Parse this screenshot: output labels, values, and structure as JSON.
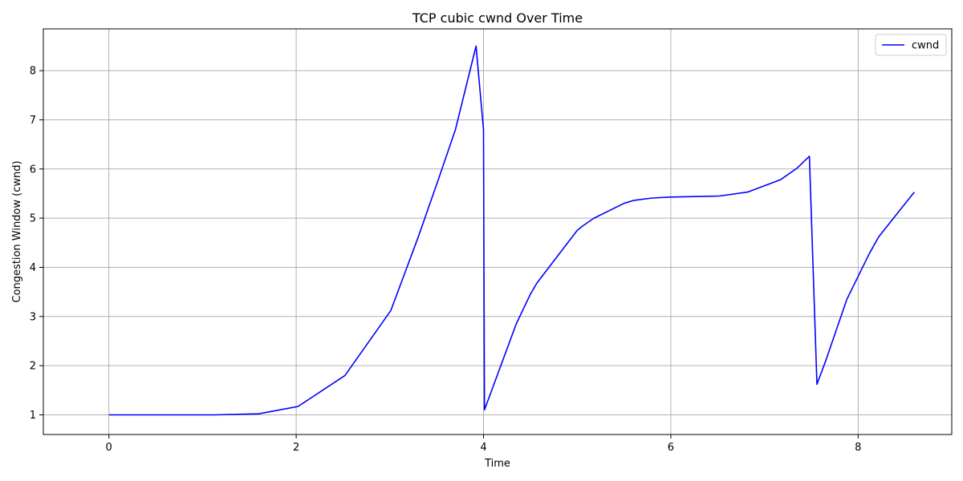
{
  "chart_data": {
    "type": "line",
    "title": "TCP cubic cwnd Over Time",
    "xlabel": "Time",
    "ylabel": "Congestion Window (cwnd)",
    "xlim": [
      -0.7,
      9.0
    ],
    "ylim": [
      0.6,
      8.85
    ],
    "xticks": [
      0,
      2,
      4,
      6,
      8
    ],
    "yticks": [
      1,
      2,
      3,
      4,
      5,
      6,
      7,
      8
    ],
    "grid": true,
    "legend_position": "top-right",
    "series": [
      {
        "name": "cwnd",
        "color": "#0000ff",
        "x": [
          0,
          0.5,
          1.0,
          1.13,
          1.6,
          2.02,
          2.52,
          3.01,
          3.3,
          3.52,
          3.7,
          3.92,
          4.0,
          4.01,
          4.35,
          4.5,
          4.57,
          5.0,
          5.05,
          5.18,
          5.5,
          5.6,
          5.8,
          6.0,
          6.3,
          6.52,
          6.82,
          7.17,
          7.35,
          7.48,
          7.56,
          7.65,
          7.88,
          8.12,
          8.22,
          8.6
        ],
        "y": [
          1.0,
          1.0,
          1.0,
          1.0,
          1.02,
          1.17,
          1.8,
          3.12,
          4.6,
          5.8,
          6.8,
          8.5,
          6.8,
          1.1,
          2.85,
          3.45,
          3.68,
          4.75,
          4.83,
          5.0,
          5.3,
          5.36,
          5.41,
          5.43,
          5.44,
          5.45,
          5.53,
          5.78,
          6.02,
          6.26,
          1.62,
          2.08,
          3.35,
          4.28,
          4.62,
          5.53
        ]
      }
    ]
  }
}
